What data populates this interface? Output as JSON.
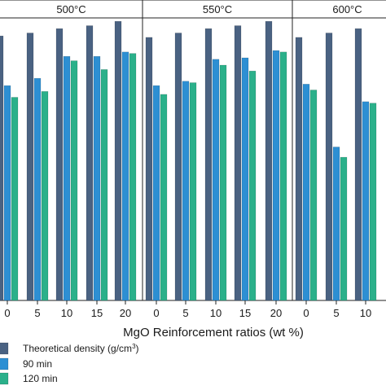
{
  "chart_data": {
    "type": "bar",
    "xlabel": "MgO Reinforcement ratios (wt %)",
    "colors": {
      "Theoretical density (g/cm³)": "#4a6282",
      "90 min": "#2d8fd3",
      "120 min": "#2bb08a"
    },
    "legend": [
      {
        "name": "Theoretical density (g/cm",
        "sup": "3",
        "tail": ")"
      },
      {
        "name": "90 min"
      },
      {
        "name": "120 min"
      }
    ],
    "ylim": [
      0,
      100
    ],
    "panels": [
      {
        "title": "500°C",
        "categories": [
          "0",
          "5",
          "10",
          "15",
          "20"
        ],
        "series": [
          {
            "name": "Theoretical density (g/cm³)",
            "values": [
              90.5,
              91.5,
              93.0,
              94.0,
              95.5
            ]
          },
          {
            "name": "90 min",
            "values": [
              73.5,
              76.0,
              83.5,
              83.5,
              85.0
            ]
          },
          {
            "name": "120 min",
            "values": [
              69.5,
              71.5,
              82.0,
              79.0,
              84.5
            ]
          }
        ]
      },
      {
        "title": "550°C",
        "categories": [
          "0",
          "5",
          "10",
          "15",
          "20"
        ],
        "series": [
          {
            "name": "Theoretical density (g/cm³)",
            "values": [
              90.0,
              91.5,
              93.0,
              94.0,
              95.5
            ]
          },
          {
            "name": "90 min",
            "values": [
              73.5,
              75.0,
              82.5,
              83.0,
              85.5
            ]
          },
          {
            "name": "120 min",
            "values": [
              70.5,
              74.5,
              80.5,
              78.5,
              85.0
            ]
          }
        ]
      },
      {
        "title": "600°C",
        "categories": [
          "0",
          "5",
          "10"
        ],
        "series": [
          {
            "name": "Theoretical density (g/cm³)",
            "values": [
              90.0,
              91.5,
              93.0
            ]
          },
          {
            "name": "90 min",
            "values": [
              74.0,
              52.5,
              68.0
            ]
          },
          {
            "name": "120 min",
            "values": [
              72.0,
              49.0,
              67.5
            ]
          }
        ]
      }
    ]
  }
}
